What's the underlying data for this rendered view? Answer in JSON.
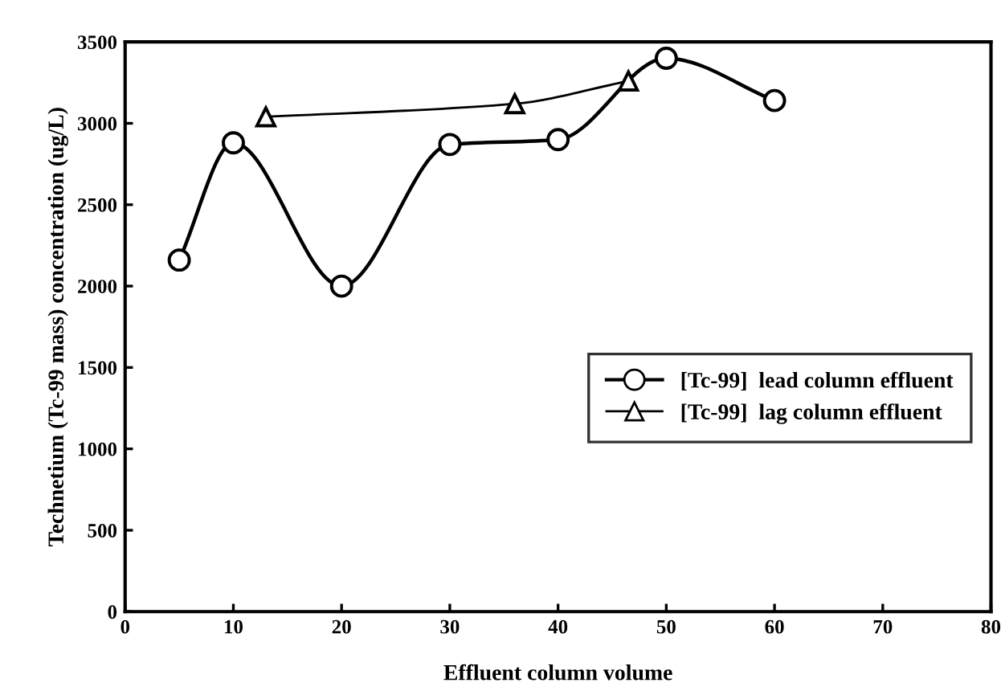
{
  "chart_data": {
    "type": "line",
    "xlabel": "Effluent column volume",
    "ylabel": "Technetium (Tc-99 mass) concentration (ug/L)",
    "xlim": [
      0,
      80
    ],
    "xticks": [
      0,
      10,
      20,
      30,
      40,
      50,
      60,
      70,
      80
    ],
    "ylim": [
      0,
      3500
    ],
    "yticks": [
      0,
      500,
      1000,
      1500,
      2000,
      2500,
      3000,
      3500
    ],
    "grid": false,
    "legend": "center right",
    "line_style": "solid",
    "series": [
      {
        "name": "[Tc-99]  lead column effluent",
        "color": "#000000",
        "marker": "circle",
        "x": [
          5,
          10,
          20,
          30,
          40,
          50,
          60
        ],
        "values": [
          2160,
          2880,
          2000,
          2870,
          2900,
          3400,
          3140
        ]
      },
      {
        "name": "[Tc-99]  lag column effluent",
        "color": "#000000",
        "marker": "triangle",
        "x": [
          13,
          36,
          46.5
        ],
        "values": [
          3040,
          3120,
          3260
        ]
      }
    ]
  }
}
